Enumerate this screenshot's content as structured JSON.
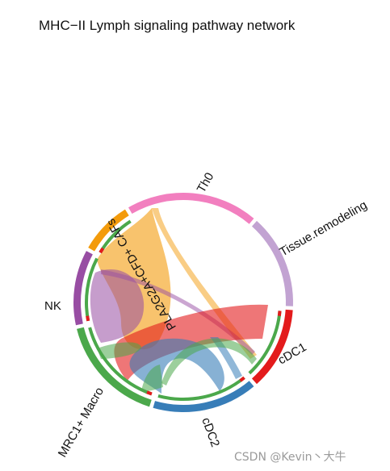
{
  "title": "MHC−II Lymph signaling pathway network",
  "watermark": "CSDN @Kevin丶大牛",
  "groups": [
    {
      "id": "th0",
      "label": "Th0",
      "color": "#f27fbf"
    },
    {
      "id": "tissue",
      "label": "Tissue.remodeling",
      "color": "#c2a3d2"
    },
    {
      "id": "cdc1",
      "label": "cDC1",
      "color": "#e31b1c"
    },
    {
      "id": "cdc2",
      "label": "cDC2",
      "color": "#377db8"
    },
    {
      "id": "mrc1",
      "label": "MRC1+ Macro",
      "color": "#4ba84b"
    },
    {
      "id": "nk",
      "label": "NK",
      "color": "#984da3"
    },
    {
      "id": "caf",
      "label": "PLA2G2A+CFD+ CAFs",
      "color": "#f39b0b"
    }
  ]
}
